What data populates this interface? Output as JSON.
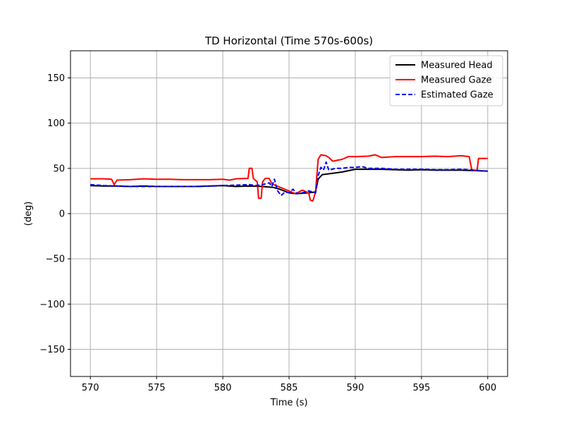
{
  "chart_data": {
    "type": "line",
    "title": "TD Horizontal (Time 570s-600s)",
    "xlabel": "Time (s)",
    "ylabel": "(deg)",
    "xlim": [
      568.5,
      601.5
    ],
    "ylim": [
      -180,
      180
    ],
    "xticks": [
      570,
      575,
      580,
      585,
      590,
      595,
      600
    ],
    "yticks": [
      -150,
      -100,
      -50,
      0,
      50,
      100,
      150
    ],
    "grid": true,
    "legend_position": "top-right",
    "series": [
      {
        "name": "Measured Head",
        "color": "#000000",
        "dash": "solid",
        "points": [
          [
            570,
            31
          ],
          [
            571,
            30.5
          ],
          [
            572,
            30.5
          ],
          [
            573,
            30
          ],
          [
            574,
            30.5
          ],
          [
            575,
            30
          ],
          [
            576,
            30
          ],
          [
            577,
            30
          ],
          [
            578,
            30
          ],
          [
            579,
            30.5
          ],
          [
            580,
            31
          ],
          [
            581,
            30
          ],
          [
            582,
            30.5
          ],
          [
            583,
            30
          ],
          [
            583.8,
            29
          ],
          [
            584.3,
            27
          ],
          [
            585,
            23
          ],
          [
            585.5,
            22
          ],
          [
            586,
            22.5
          ],
          [
            586.5,
            23
          ],
          [
            587,
            24
          ],
          [
            587.2,
            38
          ],
          [
            587.5,
            43
          ],
          [
            588,
            44
          ],
          [
            589,
            46
          ],
          [
            590,
            49
          ],
          [
            591,
            49
          ],
          [
            592,
            49
          ],
          [
            593,
            48.5
          ],
          [
            594,
            48
          ],
          [
            595,
            48.5
          ],
          [
            596,
            48
          ],
          [
            597,
            48
          ],
          [
            598,
            48
          ],
          [
            599,
            47.5
          ],
          [
            600,
            47
          ]
        ]
      },
      {
        "name": "Measured Gaze",
        "color": "#ff0000",
        "dash": "solid",
        "points": [
          [
            570,
            38.5
          ],
          [
            571,
            38.5
          ],
          [
            571.6,
            38
          ],
          [
            571.8,
            32
          ],
          [
            572,
            37
          ],
          [
            573,
            37.5
          ],
          [
            574,
            38.5
          ],
          [
            575,
            38
          ],
          [
            576,
            38
          ],
          [
            577,
            37.5
          ],
          [
            578,
            37.5
          ],
          [
            579,
            37.5
          ],
          [
            580,
            38
          ],
          [
            580.5,
            37
          ],
          [
            581,
            38.5
          ],
          [
            581.9,
            39
          ],
          [
            582,
            50
          ],
          [
            582.2,
            50
          ],
          [
            582.3,
            39
          ],
          [
            582.6,
            35
          ],
          [
            582.7,
            17
          ],
          [
            582.9,
            17
          ],
          [
            583,
            35
          ],
          [
            583.2,
            39
          ],
          [
            583.5,
            39
          ],
          [
            583.7,
            33
          ],
          [
            584,
            31
          ],
          [
            584.5,
            28
          ],
          [
            585,
            25
          ],
          [
            585.5,
            22
          ],
          [
            586,
            26
          ],
          [
            586.3,
            24
          ],
          [
            586.5,
            22
          ],
          [
            586.6,
            15
          ],
          [
            586.8,
            14
          ],
          [
            587,
            24
          ],
          [
            587.2,
            60
          ],
          [
            587.4,
            65
          ],
          [
            587.8,
            64
          ],
          [
            588,
            62
          ],
          [
            588.3,
            58
          ],
          [
            589,
            60
          ],
          [
            589.5,
            63
          ],
          [
            590,
            63
          ],
          [
            591,
            63.5
          ],
          [
            591.5,
            65
          ],
          [
            592,
            62
          ],
          [
            593,
            63
          ],
          [
            594,
            63
          ],
          [
            595,
            63
          ],
          [
            596,
            63.5
          ],
          [
            597,
            63
          ],
          [
            598,
            64
          ],
          [
            598.6,
            63
          ],
          [
            598.8,
            48
          ],
          [
            599.2,
            48
          ],
          [
            599.3,
            61
          ],
          [
            600,
            61
          ]
        ]
      },
      {
        "name": "Estimated Gaze",
        "color": "#0000ff",
        "dash": "dashed",
        "points": [
          [
            570,
            32
          ],
          [
            571,
            31
          ],
          [
            572,
            30.5
          ],
          [
            573,
            30
          ],
          [
            574,
            30
          ],
          [
            575,
            30
          ],
          [
            576,
            30
          ],
          [
            577,
            30
          ],
          [
            578,
            30
          ],
          [
            579,
            30.5
          ],
          [
            580,
            31
          ],
          [
            581,
            31.5
          ],
          [
            582,
            32
          ],
          [
            582.5,
            31
          ],
          [
            583,
            32
          ],
          [
            583.5,
            34
          ],
          [
            583.7,
            30
          ],
          [
            583.9,
            38
          ],
          [
            584.1,
            26
          ],
          [
            584.4,
            20
          ],
          [
            584.7,
            24
          ],
          [
            585,
            23
          ],
          [
            585.3,
            27
          ],
          [
            585.6,
            22
          ],
          [
            586,
            23
          ],
          [
            586.5,
            25
          ],
          [
            587,
            23
          ],
          [
            587.2,
            42
          ],
          [
            587.4,
            51
          ],
          [
            587.6,
            48
          ],
          [
            587.8,
            57
          ],
          [
            588,
            48
          ],
          [
            588.5,
            50
          ],
          [
            589,
            50
          ],
          [
            589.5,
            51
          ],
          [
            590,
            51
          ],
          [
            590.5,
            52
          ],
          [
            591,
            50
          ],
          [
            592,
            50
          ],
          [
            593,
            49
          ],
          [
            594,
            49
          ],
          [
            595,
            49
          ],
          [
            596,
            48.5
          ],
          [
            597,
            48.5
          ],
          [
            598,
            49
          ],
          [
            599,
            48
          ],
          [
            600,
            47
          ]
        ]
      }
    ]
  }
}
